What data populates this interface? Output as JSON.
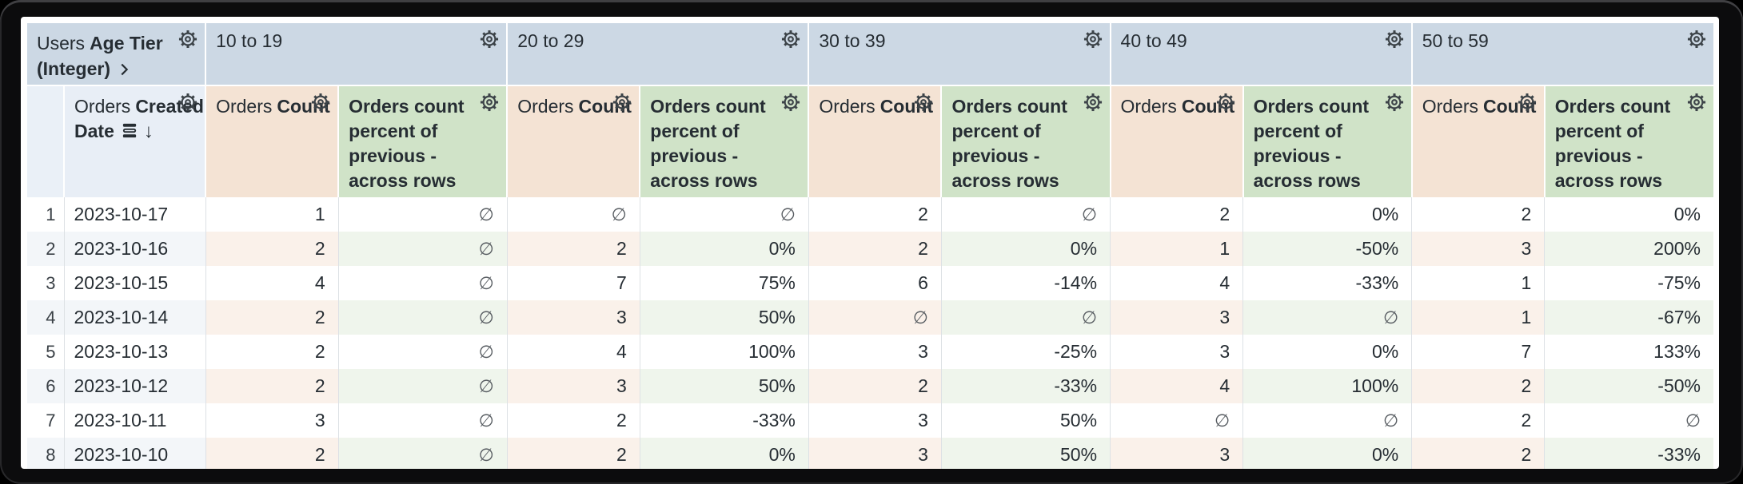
{
  "corner": {
    "view": "Users",
    "field": "Age Tier (Integer)"
  },
  "row_dimension": {
    "view": "Orders",
    "field": "Created Date",
    "sort_glyph": "↓"
  },
  "pivot_values": [
    "10 to 19",
    "20 to 29",
    "30 to 39",
    "40 to 49",
    "50 to 59"
  ],
  "measure_columns": {
    "count": {
      "view": "Orders",
      "field": "Count"
    },
    "percent": {
      "field": "Orders count percent of previous - across rows"
    }
  },
  "null_glyph": "∅",
  "colors": {
    "pivot_header_bg": "#ccd8e4",
    "dimension_header_bg": "#e8eef6",
    "count_header_bg": "#f4e3d4",
    "percent_header_bg": "#d0e3c8",
    "text": "#262d33"
  },
  "rows": [
    {
      "index": "1",
      "date": "2023-10-17",
      "values": [
        "1",
        "∅",
        "∅",
        "∅",
        "2",
        "∅",
        "2",
        "0%",
        "2",
        "0%"
      ]
    },
    {
      "index": "2",
      "date": "2023-10-16",
      "values": [
        "2",
        "∅",
        "2",
        "0%",
        "2",
        "0%",
        "1",
        "-50%",
        "3",
        "200%"
      ]
    },
    {
      "index": "3",
      "date": "2023-10-15",
      "values": [
        "4",
        "∅",
        "7",
        "75%",
        "6",
        "-14%",
        "4",
        "-33%",
        "1",
        "-75%"
      ]
    },
    {
      "index": "4",
      "date": "2023-10-14",
      "values": [
        "2",
        "∅",
        "3",
        "50%",
        "∅",
        "∅",
        "3",
        "∅",
        "1",
        "-67%"
      ]
    },
    {
      "index": "5",
      "date": "2023-10-13",
      "values": [
        "2",
        "∅",
        "4",
        "100%",
        "3",
        "-25%",
        "3",
        "0%",
        "7",
        "133%"
      ]
    },
    {
      "index": "6",
      "date": "2023-10-12",
      "values": [
        "2",
        "∅",
        "3",
        "50%",
        "2",
        "-33%",
        "4",
        "100%",
        "2",
        "-50%"
      ]
    },
    {
      "index": "7",
      "date": "2023-10-11",
      "values": [
        "3",
        "∅",
        "2",
        "-33%",
        "3",
        "50%",
        "∅",
        "∅",
        "2",
        "∅"
      ]
    },
    {
      "index": "8",
      "date": "2023-10-10",
      "values": [
        "2",
        "∅",
        "2",
        "0%",
        "3",
        "50%",
        "3",
        "0%",
        "2",
        "-33%"
      ]
    }
  ]
}
